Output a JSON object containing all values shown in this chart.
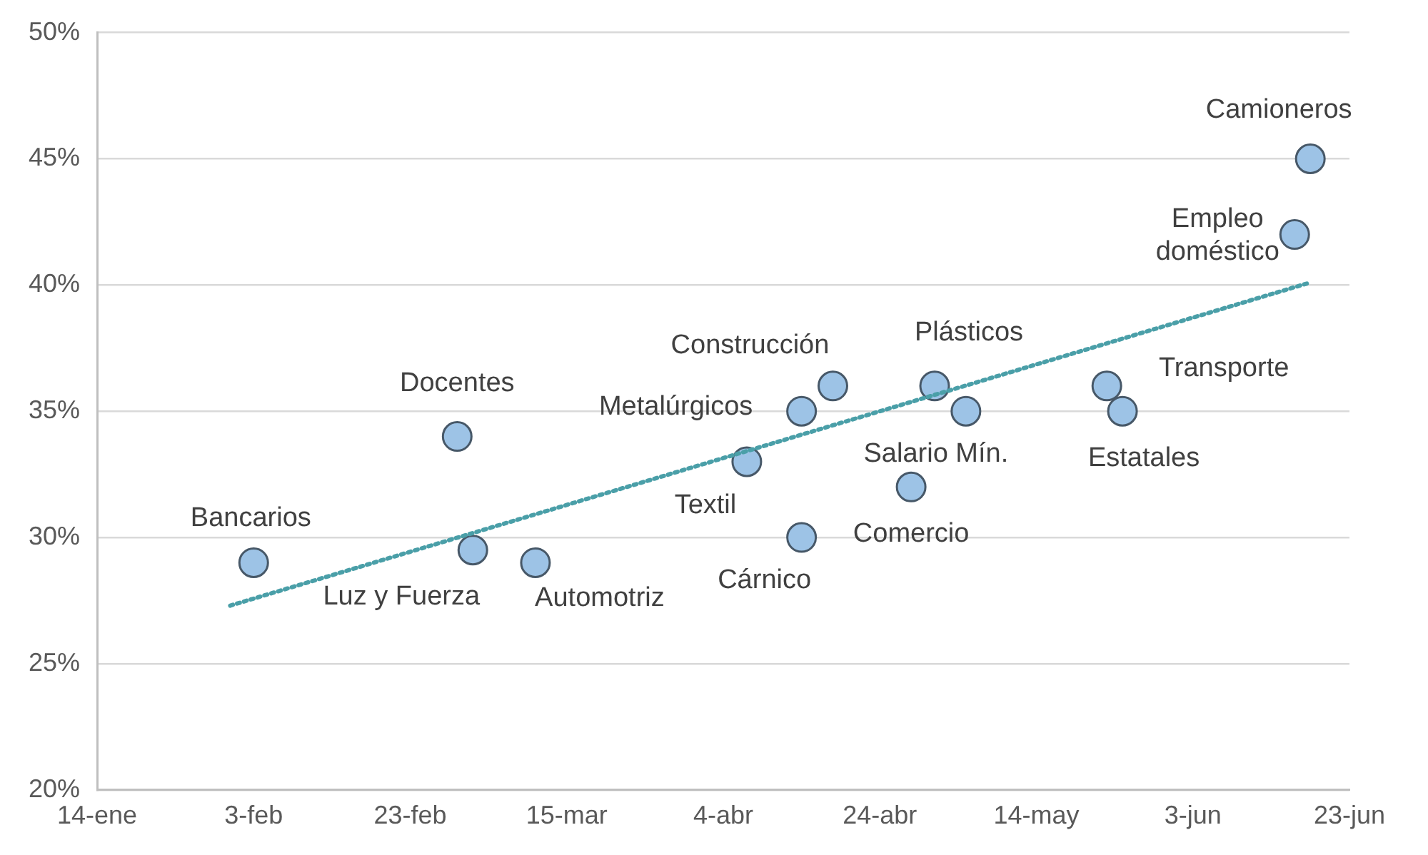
{
  "chart_data": {
    "type": "scatter",
    "marker": "circle",
    "grid": "y",
    "legend": false,
    "xlim": [
      "--01-14",
      "--06-23"
    ],
    "xticks": [
      {
        "value": "--01-14",
        "label": "14-ene"
      },
      {
        "value": "--02-03",
        "label": "3-feb"
      },
      {
        "value": "--02-23",
        "label": "23-feb"
      },
      {
        "value": "--03-15",
        "label": "15-mar"
      },
      {
        "value": "--04-04",
        "label": "4-abr"
      },
      {
        "value": "--04-24",
        "label": "24-abr"
      },
      {
        "value": "--05-14",
        "label": "14-may"
      },
      {
        "value": "--06-03",
        "label": "3-jun"
      },
      {
        "value": "--06-23",
        "label": "23-jun"
      }
    ],
    "ylim": [
      20,
      50
    ],
    "yticks": [
      {
        "value": 20,
        "label": "20%"
      },
      {
        "value": 25,
        "label": "25%"
      },
      {
        "value": 30,
        "label": "30%"
      },
      {
        "value": 35,
        "label": "35%"
      },
      {
        "value": 40,
        "label": "40%"
      },
      {
        "value": 45,
        "label": "45%"
      },
      {
        "value": 50,
        "label": "50%"
      }
    ],
    "series": [
      {
        "color": "#9dc3e6",
        "x": [
          "--02-03",
          "--03-01",
          "--03-03",
          "--03-11",
          "--04-07",
          "--04-14",
          "--04-14",
          "--04-18",
          "--04-28",
          "--05-01",
          "--05-05",
          "--05-23",
          "--05-25",
          "--06-16",
          "--06-18"
        ],
        "values": [
          29,
          34,
          29.5,
          29,
          33,
          35,
          30,
          36,
          32,
          36,
          35,
          36,
          35,
          42,
          45
        ]
      },
      {
        "type": "line",
        "color": "#4a9fa8",
        "line_style": "dotted",
        "marker": "none",
        "x": [
          "--01-31",
          "--06-18"
        ],
        "values": [
          27.3,
          40.1
        ]
      }
    ],
    "annotations": [
      {
        "text": "Camioneros",
        "x": "--06-18",
        "y": 45
      },
      {
        "text": "Empleo\ndoméstico",
        "x": "--06-16",
        "y": 42
      },
      {
        "text": "Construcción",
        "x": "--04-18",
        "y": 36
      },
      {
        "text": "Plásticos",
        "x": "--05-01",
        "y": 36
      },
      {
        "text": "Docentes",
        "x": "--03-01",
        "y": 34
      },
      {
        "text": "Metalúrgicos",
        "x": "--04-14",
        "y": 35
      },
      {
        "text": "Transporte",
        "x": "--05-23",
        "y": 36
      },
      {
        "text": "Salario Mín.",
        "x": "--05-05",
        "y": 35
      },
      {
        "text": "Estatales",
        "x": "--05-25",
        "y": 35
      },
      {
        "text": "Textil",
        "x": "--04-07",
        "y": 33
      },
      {
        "text": "Bancarios",
        "x": "--02-03",
        "y": 29
      },
      {
        "text": "Comercio",
        "x": "--04-28",
        "y": 32
      },
      {
        "text": "Cárnico",
        "x": "--04-14",
        "y": 30
      },
      {
        "text": "Luz y Fuerza",
        "x": "--03-03",
        "y": 29.5
      },
      {
        "text": "Automotriz",
        "x": "--03-11",
        "y": 29
      }
    ]
  }
}
